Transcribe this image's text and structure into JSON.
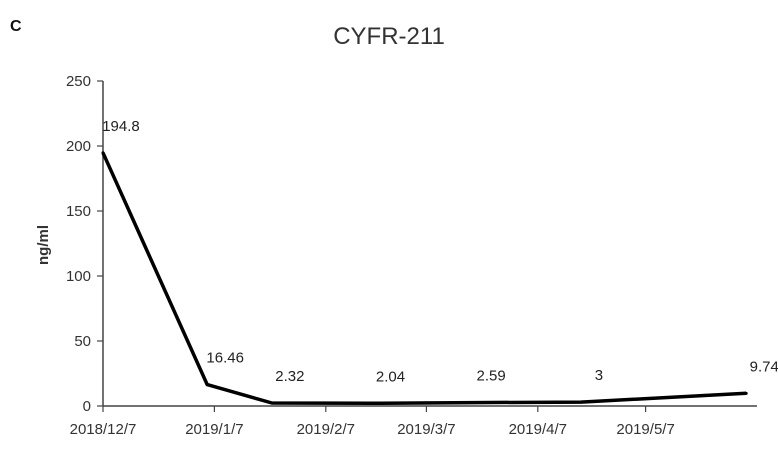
{
  "panel_label": "C",
  "chart_data": {
    "type": "line",
    "title": "CYFR-211",
    "xlabel": "",
    "ylabel": "ng/ml",
    "ylim": [
      0,
      250
    ],
    "yticks": [
      "0",
      "50",
      "100",
      "150",
      "200",
      "250"
    ],
    "xlim": [
      "2018-12-07",
      "2019-06-07"
    ],
    "xtick_labels": [
      "2018/12/7",
      "2019/1/7",
      "2019/2/7",
      "2019/3/7",
      "2019/4/7",
      "2019/5/7"
    ],
    "xtick_dates": [
      "2018-12-07",
      "2019-01-07",
      "2019-02-07",
      "2019-03-07",
      "2019-04-07",
      "2019-05-07"
    ],
    "grid": false,
    "colors": {
      "line": "#000000",
      "axis": "#444444",
      "text": "#333333"
    },
    "series": [
      {
        "x": [
          "2018-12-07",
          "2019-01-05",
          "2019-01-23",
          "2019-02-20",
          "2019-03-20",
          "2019-04-19",
          "2019-06-04"
        ],
        "values": [
          194.8,
          16.46,
          2.32,
          2.04,
          2.59,
          3,
          9.74
        ],
        "labels": [
          "194.8",
          "16.46",
          "2.32",
          "2.04",
          "2.59",
          "3",
          "9.74"
        ]
      }
    ]
  }
}
